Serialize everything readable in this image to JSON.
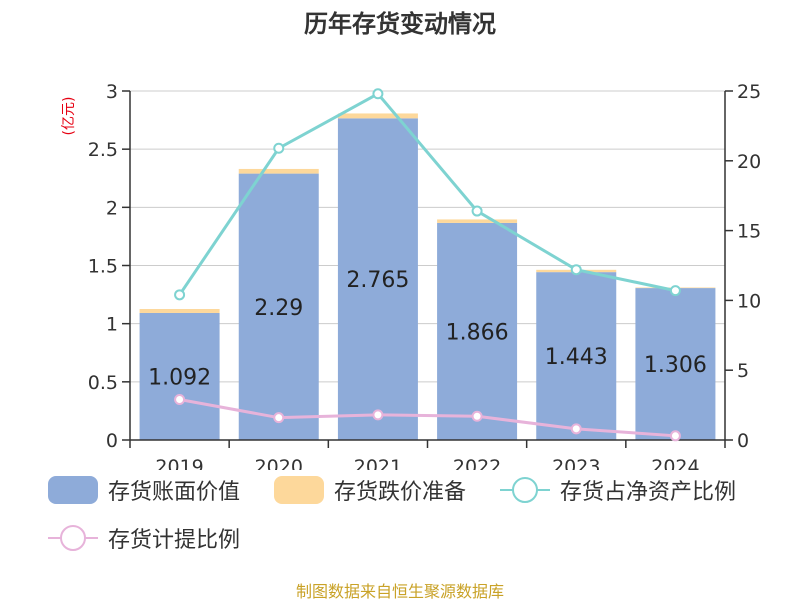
{
  "title": "历年存货变动情况",
  "unit_label": "(亿元)",
  "source_note": "制图数据来自恒生聚源数据库",
  "colors": {
    "book_value": "#8eabd9",
    "impairment": "#fdd89b",
    "net_asset_ratio": "#7ed3d1",
    "provision_ratio": "#e7b3da",
    "axis": "#333333",
    "grid": "#cccccc",
    "unit": "#e60012",
    "source": "#c9a227"
  },
  "legend": [
    {
      "key": "book_value",
      "label": "存货账面价值",
      "shape": "box"
    },
    {
      "key": "impairment",
      "label": "存货跌价准备",
      "shape": "box"
    },
    {
      "key": "net_asset_ratio",
      "label": "存货占净资产比例",
      "shape": "line-circle"
    },
    {
      "key": "provision_ratio",
      "label": "存货计提比例",
      "shape": "line-circle"
    }
  ],
  "chart_data": {
    "type": "bar",
    "title": "历年存货变动情况",
    "categories": [
      "2019",
      "2020",
      "2021",
      "2022",
      "2023",
      "2024"
    ],
    "y_left": {
      "label": "(亿元)",
      "range": [
        0,
        3
      ],
      "ticks": [
        "0",
        "0.5",
        "1",
        "1.5",
        "2",
        "2.5",
        "3"
      ]
    },
    "y_right": {
      "range": [
        0,
        25
      ],
      "ticks": [
        "0",
        "5",
        "10",
        "15",
        "20",
        "25"
      ]
    },
    "grid": true,
    "legend_position": "bottom",
    "series": [
      {
        "name": "存货账面价值",
        "kind": "bar",
        "axis": "left",
        "values": [
          1.092,
          2.29,
          2.765,
          1.866,
          1.443,
          1.306
        ],
        "labels": [
          "1.092",
          "2.29",
          "2.765",
          "1.866",
          "1.443",
          "1.306"
        ]
      },
      {
        "name": "存货跌价准备",
        "kind": "bar-stacked",
        "axis": "left",
        "values": [
          0.034,
          0.04,
          0.042,
          0.03,
          0.02,
          0.005
        ]
      },
      {
        "name": "存货占净资产比例",
        "kind": "line",
        "axis": "right",
        "values": [
          10.4,
          20.9,
          24.8,
          16.4,
          12.2,
          10.7
        ]
      },
      {
        "name": "存货计提比例",
        "kind": "line",
        "axis": "right",
        "values": [
          2.9,
          1.6,
          1.8,
          1.7,
          0.8,
          0.3
        ]
      }
    ]
  }
}
